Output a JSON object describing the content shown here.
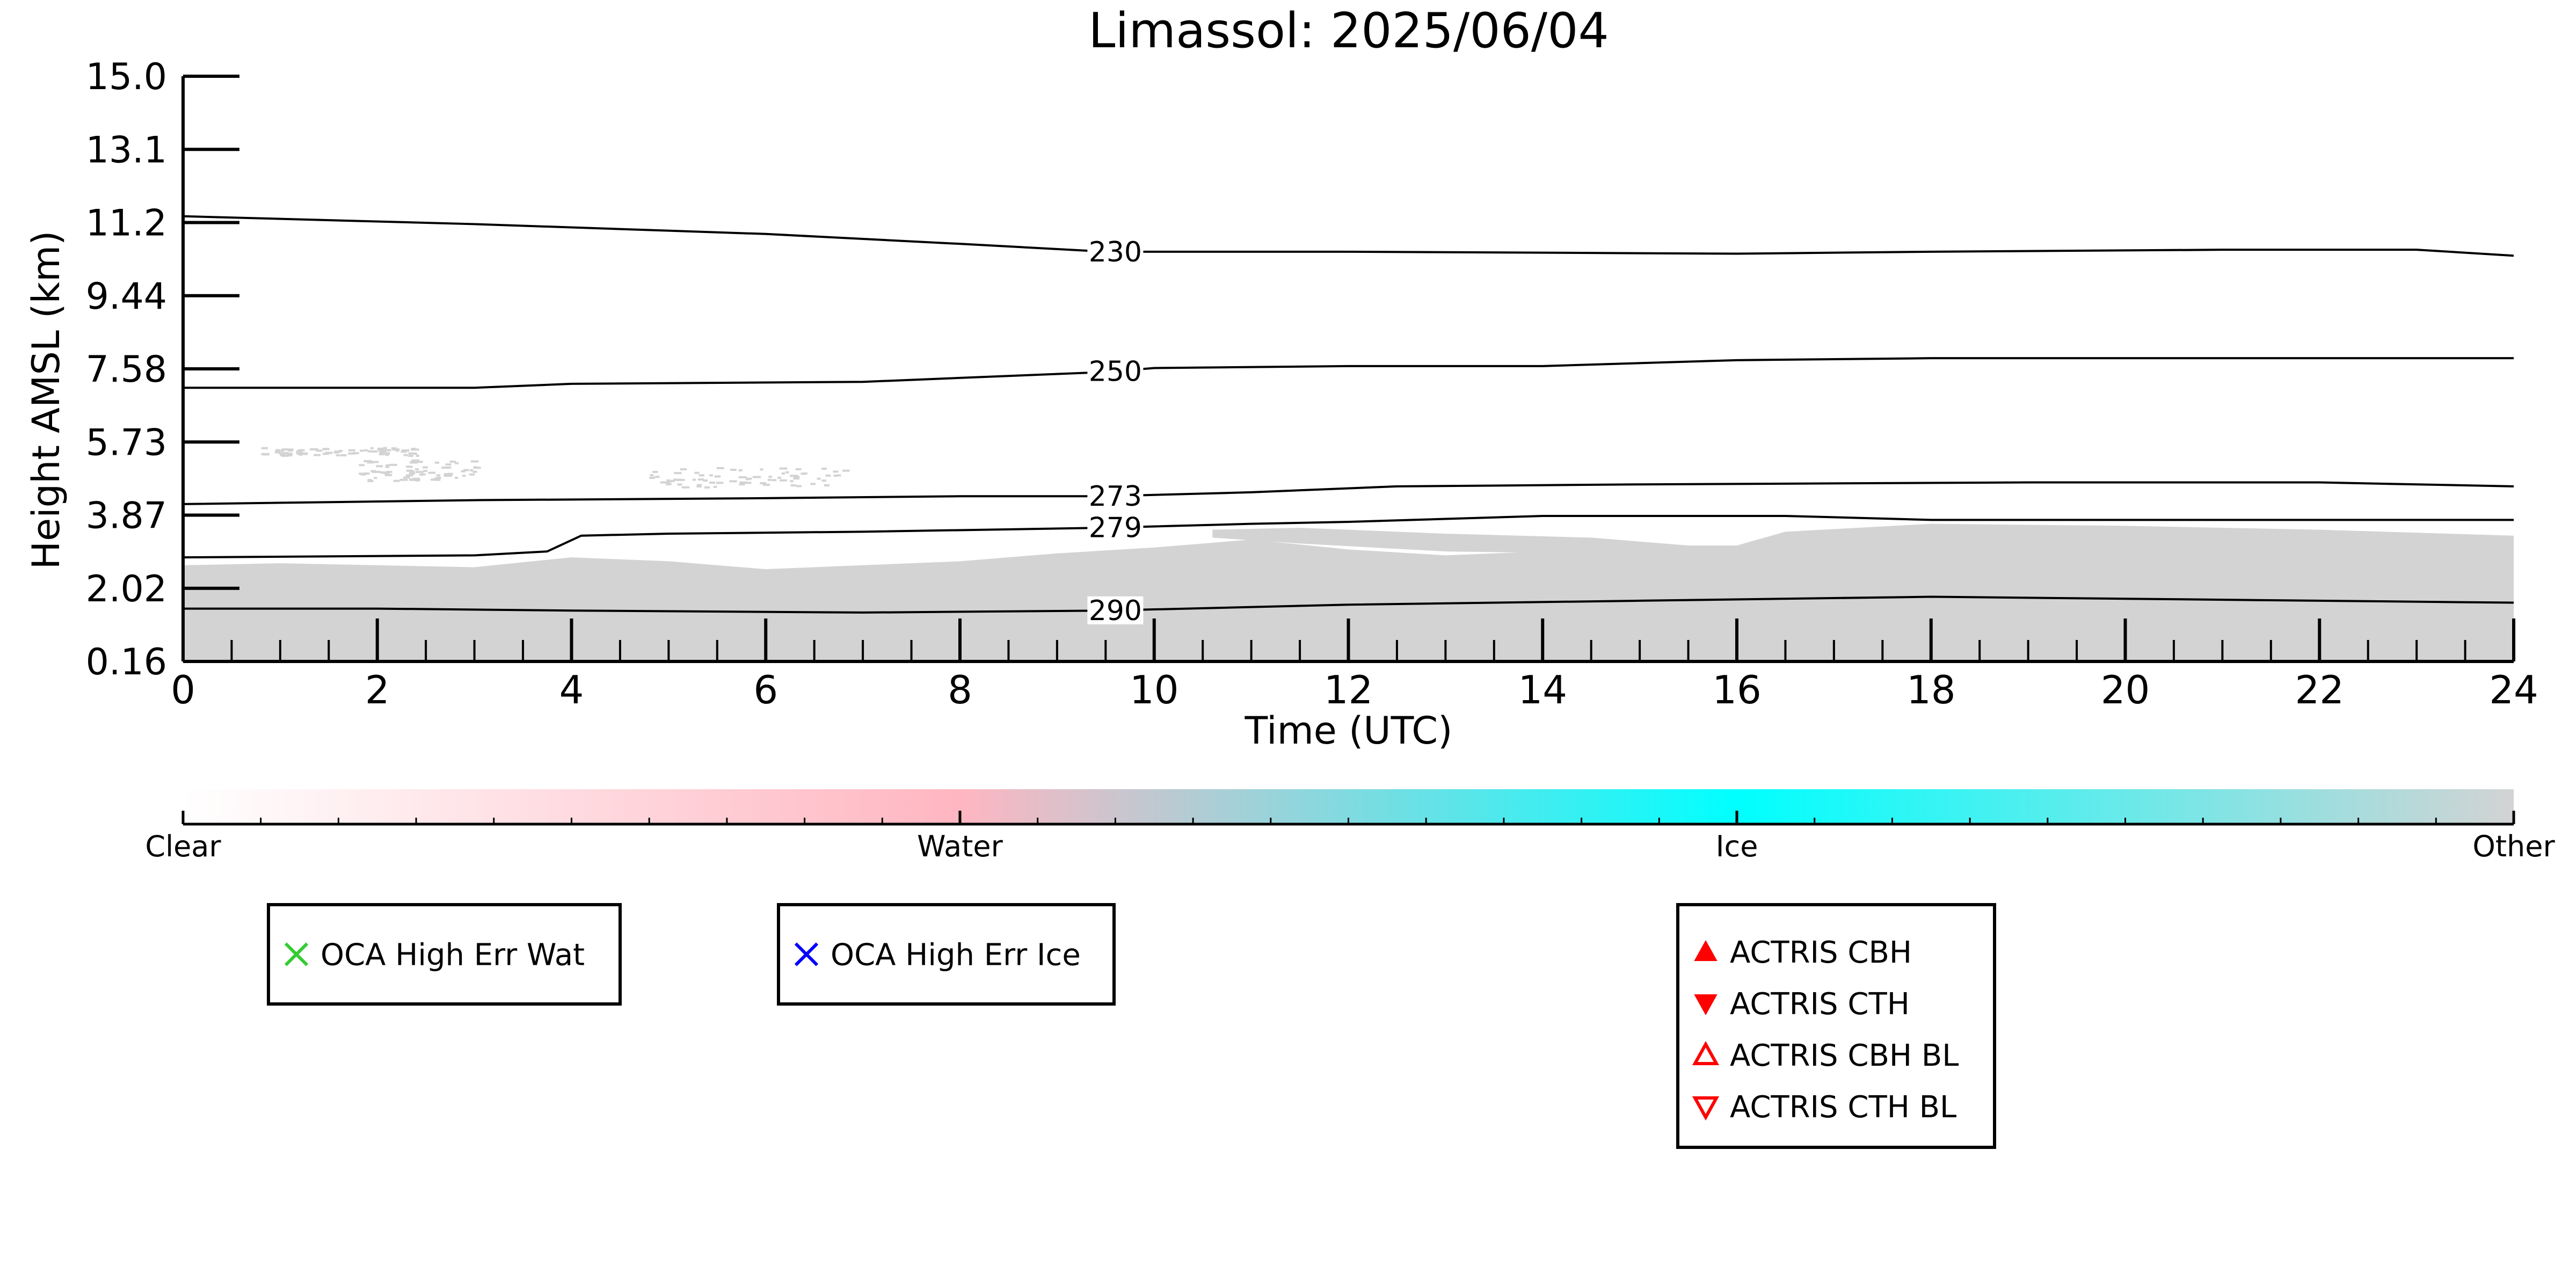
{
  "chart_data": {
    "type": "heatmap",
    "title": "Limassol: 2025/06/04",
    "xlabel": "Time (UTC)",
    "ylabel": "Height AMSL (km)",
    "xlim": [
      0,
      24
    ],
    "ylim": [
      0.16,
      15.0
    ],
    "x_ticks": [
      "0",
      "2",
      "4",
      "6",
      "8",
      "10",
      "12",
      "14",
      "16",
      "18",
      "20",
      "22",
      "24"
    ],
    "y_ticks": [
      "0.16",
      "2.02",
      "3.87",
      "5.73",
      "7.58",
      "9.44",
      "11.2",
      "13.1",
      "15.0"
    ],
    "grid": false,
    "isotherms": [
      {
        "label": "230",
        "label_x": 9.6,
        "points": [
          [
            0,
            11.45
          ],
          [
            3,
            11.25
          ],
          [
            6,
            11.0
          ],
          [
            8,
            10.75
          ],
          [
            9.5,
            10.55
          ],
          [
            10,
            10.55
          ],
          [
            12,
            10.55
          ],
          [
            16,
            10.5
          ],
          [
            18,
            10.55
          ],
          [
            21,
            10.6
          ],
          [
            23,
            10.6
          ],
          [
            24,
            10.45
          ]
        ]
      },
      {
        "label": "250",
        "label_x": 9.6,
        "points": [
          [
            0,
            7.1
          ],
          [
            3,
            7.1
          ],
          [
            4,
            7.2
          ],
          [
            7,
            7.25
          ],
          [
            9.5,
            7.5
          ],
          [
            10,
            7.6
          ],
          [
            12,
            7.65
          ],
          [
            14,
            7.65
          ],
          [
            16,
            7.8
          ],
          [
            18,
            7.85
          ],
          [
            20,
            7.85
          ],
          [
            24,
            7.85
          ]
        ]
      },
      {
        "label": "273",
        "label_x": 9.6,
        "points": [
          [
            0,
            4.15
          ],
          [
            3,
            4.25
          ],
          [
            6,
            4.3
          ],
          [
            8,
            4.35
          ],
          [
            9.5,
            4.35
          ],
          [
            11,
            4.45
          ],
          [
            12.5,
            4.6
          ],
          [
            15,
            4.65
          ],
          [
            19,
            4.7
          ],
          [
            22,
            4.7
          ],
          [
            24,
            4.6
          ]
        ]
      },
      {
        "label": "279",
        "label_x": 9.6,
        "points": [
          [
            0,
            2.8
          ],
          [
            3,
            2.85
          ],
          [
            3.75,
            2.95
          ],
          [
            4.1,
            3.35
          ],
          [
            5,
            3.4
          ],
          [
            7,
            3.45
          ],
          [
            9.5,
            3.55
          ],
          [
            11,
            3.65
          ],
          [
            12,
            3.7
          ],
          [
            14,
            3.85
          ],
          [
            16.5,
            3.85
          ],
          [
            18,
            3.75
          ],
          [
            21,
            3.75
          ],
          [
            24,
            3.75
          ]
        ]
      },
      {
        "label": "290",
        "label_x": 9.6,
        "points": [
          [
            0,
            1.5
          ],
          [
            2,
            1.5
          ],
          [
            4,
            1.45
          ],
          [
            7,
            1.4
          ],
          [
            9.5,
            1.45
          ],
          [
            12,
            1.6
          ],
          [
            15,
            1.7
          ],
          [
            18,
            1.8
          ],
          [
            20,
            1.75
          ],
          [
            24,
            1.65
          ]
        ]
      }
    ],
    "cloud_mask_regions": [
      {
        "class": "Other",
        "color": "#d3d3d3",
        "polygon": [
          [
            0,
            0.16
          ],
          [
            0,
            2.6
          ],
          [
            1,
            2.65
          ],
          [
            2,
            2.6
          ],
          [
            3,
            2.55
          ],
          [
            4,
            2.8
          ],
          [
            5,
            2.7
          ],
          [
            6,
            2.5
          ],
          [
            7,
            2.6
          ],
          [
            8,
            2.7
          ],
          [
            9,
            2.9
          ],
          [
            10,
            3.05
          ],
          [
            11,
            3.25
          ],
          [
            12,
            3.0
          ],
          [
            13,
            2.85
          ],
          [
            14,
            2.95
          ],
          [
            15,
            3.1
          ],
          [
            16,
            3.1
          ],
          [
            16.5,
            3.45
          ],
          [
            18,
            3.65
          ],
          [
            20,
            3.6
          ],
          [
            22,
            3.5
          ],
          [
            24,
            3.35
          ],
          [
            24,
            0.16
          ]
        ]
      },
      {
        "class": "Other",
        "color": "#d3d3d3",
        "polygon": [
          [
            10.6,
            3.5
          ],
          [
            11.5,
            3.55
          ],
          [
            13,
            3.4
          ],
          [
            14.5,
            3.3
          ],
          [
            15.5,
            3.1
          ],
          [
            14.5,
            2.9
          ],
          [
            13,
            2.95
          ],
          [
            11.5,
            3.15
          ],
          [
            10.6,
            3.3
          ]
        ]
      }
    ],
    "cloud_mask_specks": [
      {
        "x": [
          1.8,
          3.0
        ],
        "y": [
          4.75,
          5.3
        ]
      },
      {
        "x": [
          4.8,
          6.8
        ],
        "y": [
          4.6,
          5.1
        ]
      },
      {
        "x": [
          0.8,
          2.4
        ],
        "y": [
          5.4,
          5.6
        ]
      }
    ],
    "colorbar": {
      "labels": [
        "Clear",
        "Water",
        "Ice",
        "Other"
      ],
      "colors": [
        "#ffffff",
        "#ffb6c1",
        "#00ffff",
        "#d3d3d3"
      ]
    },
    "legends": [
      {
        "items": [
          {
            "label": "OCA High Err Wat",
            "marker": "x",
            "color": "#33cc33"
          }
        ]
      },
      {
        "items": [
          {
            "label": "OCA High Err Ice",
            "marker": "x",
            "color": "#0000ff"
          }
        ]
      },
      {
        "items": [
          {
            "label": "ACTRIS CBH",
            "marker": "triangle-up-filled",
            "color": "#ff0000"
          },
          {
            "label": "ACTRIS CTH",
            "marker": "triangle-down-filled",
            "color": "#ff0000"
          },
          {
            "label": "ACTRIS CBH BL",
            "marker": "triangle-up-open",
            "color": "#ff0000"
          },
          {
            "label": "ACTRIS CTH BL",
            "marker": "triangle-down-open",
            "color": "#ff0000"
          }
        ]
      }
    ]
  }
}
